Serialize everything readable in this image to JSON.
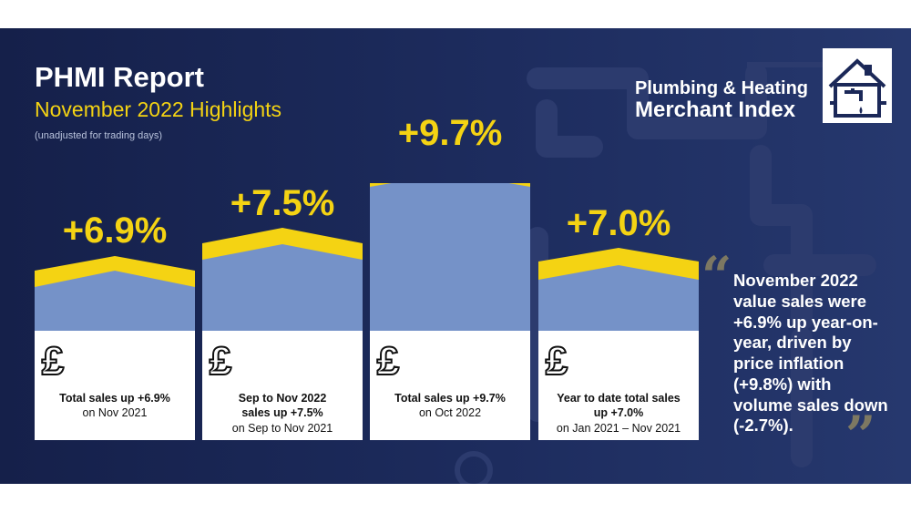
{
  "header": {
    "title": "PHMI Report",
    "subtitle": "November 2022 Highlights",
    "note": "(unadjusted for trading days)"
  },
  "logo": {
    "line1": "Plumbing & Heating",
    "line2": "Merchant Index"
  },
  "colors": {
    "background": "#1b2858",
    "accent_yellow": "#f4d313",
    "bar_blue": "#7592c8",
    "card_white": "#ffffff",
    "quote_mark": "#7d7862"
  },
  "highlights": [
    {
      "percent": "+6.9%",
      "line1": "Total sales up +6.9%",
      "line2": "on Nov 2021",
      "icon": "pound-sign-icon"
    },
    {
      "percent": "+7.5%",
      "line1": "Sep to Nov 2022",
      "line1b": "sales up +7.5%",
      "line2": "on Sep to Nov 2021",
      "icon": "pound-sign-icon"
    },
    {
      "percent": "+9.7%",
      "line1": "Total sales up +9.7%",
      "line2": "on Oct 2022",
      "icon": "pound-sign-icon"
    },
    {
      "percent": "+7.0%",
      "line1": "Year to date total sales",
      "line1b": "up +7.0%",
      "line2": "on Jan 2021 – Nov 2021",
      "icon": "pound-sign-icon"
    }
  ],
  "quote": {
    "text": "November 2022 value sales were +6.9% up year-on-year, driven by price inflation (+9.8%) with volume sales down (-2.7%)."
  }
}
